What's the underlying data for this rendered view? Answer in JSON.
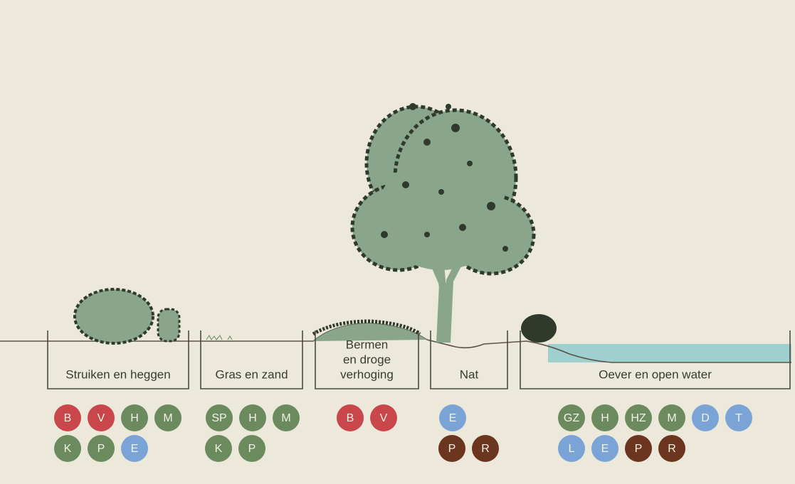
{
  "zones": [
    {
      "label": [
        "Struiken en heggen"
      ],
      "badges": [
        [
          {
            "text": "B",
            "color": "#c9474b"
          },
          {
            "text": "V",
            "color": "#c9474b"
          },
          {
            "text": "H",
            "color": "#6b8a5e"
          },
          {
            "text": "M",
            "color": "#6b8a5e"
          }
        ],
        [
          {
            "text": "K",
            "color": "#6b8a5e"
          },
          {
            "text": "P",
            "color": "#6b8a5e"
          },
          {
            "text": "E",
            "color": "#7aa4d6"
          }
        ]
      ]
    },
    {
      "label": [
        "Gras en zand"
      ],
      "badges": [
        [
          {
            "text": "SP",
            "color": "#6b8a5e"
          },
          {
            "text": "H",
            "color": "#6b8a5e"
          },
          {
            "text": "M",
            "color": "#6b8a5e"
          }
        ],
        [
          {
            "text": "K",
            "color": "#6b8a5e"
          },
          {
            "text": "P",
            "color": "#6b8a5e"
          }
        ]
      ]
    },
    {
      "label": [
        "Bermen",
        "en droge",
        "verhoging"
      ],
      "badges": [
        [
          {
            "text": "B",
            "color": "#c9474b"
          },
          {
            "text": "V",
            "color": "#c9474b"
          }
        ]
      ]
    },
    {
      "label": [
        "Nat"
      ],
      "badges": [
        [
          {
            "text": "E",
            "color": "#7aa4d6"
          }
        ],
        [
          {
            "text": "P",
            "color": "#6b3520"
          },
          {
            "text": "R",
            "color": "#6b3520"
          }
        ]
      ]
    },
    {
      "label": [
        "Oever en open water"
      ],
      "badges": [
        [
          {
            "text": "GZ",
            "color": "#6b8a5e"
          },
          {
            "text": "H",
            "color": "#6b8a5e"
          },
          {
            "text": "HZ",
            "color": "#6b8a5e"
          },
          {
            "text": "M",
            "color": "#6b8a5e"
          },
          {
            "text": "D",
            "color": "#7aa4d6"
          },
          {
            "text": "T",
            "color": "#7aa4d6"
          }
        ],
        [
          {
            "text": "L",
            "color": "#7aa4d6"
          },
          {
            "text": "E",
            "color": "#7aa4d6"
          },
          {
            "text": "P",
            "color": "#6b3520"
          },
          {
            "text": "R",
            "color": "#6b3520"
          }
        ]
      ]
    }
  ]
}
